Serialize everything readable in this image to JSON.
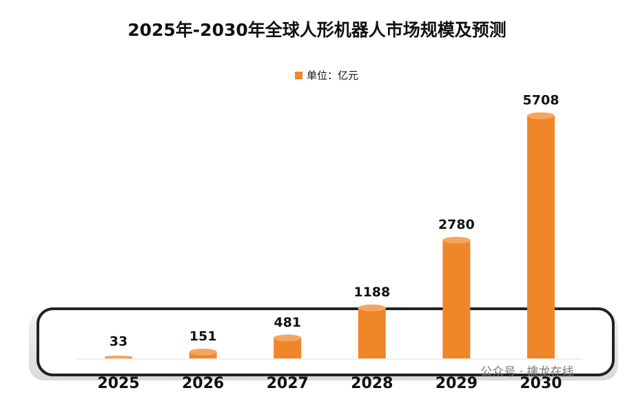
{
  "chart_data": {
    "type": "bar",
    "title": "2025年-2030年全球人形机器人市场规模及预测",
    "legend": "单位：亿元",
    "categories": [
      "2025",
      "2026",
      "2027",
      "2028",
      "2029",
      "2030"
    ],
    "values": [
      33,
      151,
      481,
      1188,
      2780,
      5708
    ],
    "color": "#f0862a",
    "watermark": "公众号 · 擒龙在线"
  }
}
